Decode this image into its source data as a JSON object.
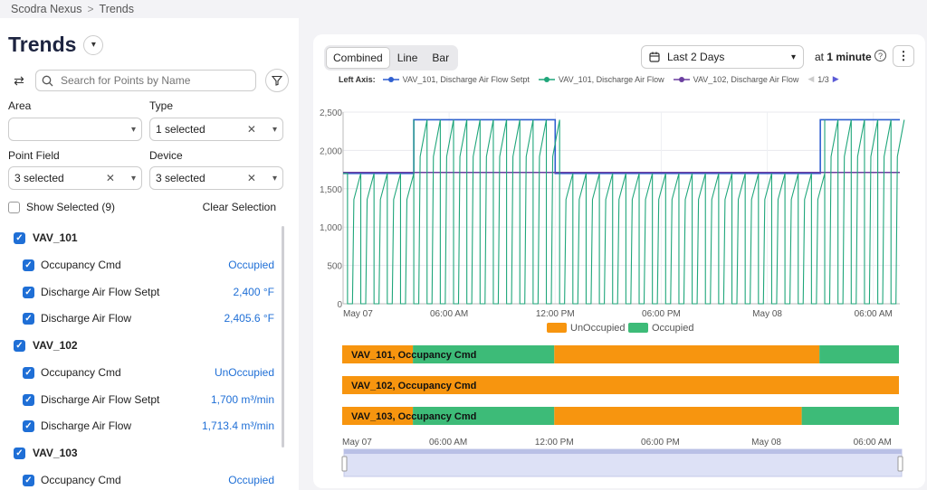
{
  "breadcrumb": {
    "root": "Scodra Nexus",
    "current": "Trends"
  },
  "sidebar": {
    "title": "Trends",
    "search_placeholder": "Search for Points by Name",
    "filters": {
      "area": {
        "label": "Area",
        "value": ""
      },
      "type": {
        "label": "Type",
        "value": "1 selected"
      },
      "point_field": {
        "label": "Point Field",
        "value": "3 selected"
      },
      "device": {
        "label": "Device",
        "value": "3 selected"
      }
    },
    "show_selected": {
      "label": "Show Selected (9)",
      "checked": false
    },
    "clear_selection": "Clear Selection",
    "devices": [
      {
        "name": "VAV_101",
        "points": [
          {
            "name": "Occupancy Cmd",
            "value": "Occupied"
          },
          {
            "name": "Discharge Air Flow Setpt",
            "value": "2,400 °F"
          },
          {
            "name": "Discharge Air Flow",
            "value": "2,405.6 °F"
          }
        ]
      },
      {
        "name": "VAV_102",
        "points": [
          {
            "name": "Occupancy Cmd",
            "value": "UnOccupied"
          },
          {
            "name": "Discharge Air Flow Setpt",
            "value": "1,700 m³/min"
          },
          {
            "name": "Discharge Air Flow",
            "value": "1,713.4 m³/min"
          }
        ]
      },
      {
        "name": "VAV_103",
        "points": [
          {
            "name": "Occupancy Cmd",
            "value": "Occupied"
          }
        ]
      }
    ]
  },
  "toolbar": {
    "view_modes": [
      "Combined",
      "Line",
      "Bar"
    ],
    "active_view": "Combined",
    "time_range": "Last 2 Days",
    "interval_prefix": "at",
    "interval_value": "1 minute",
    "help_icon": "question-circle-icon",
    "menu_icon": "kebab-icon"
  },
  "legend": {
    "axis_label": "Left Axis:",
    "items": [
      {
        "name": "VAV_101, Discharge Air Flow Setpt",
        "color": "#2f5fd0"
      },
      {
        "name": "VAV_101, Discharge Air Flow",
        "color": "#1fa67a"
      },
      {
        "name": "VAV_102, Discharge Air Flow",
        "color": "#6b3fa0"
      }
    ],
    "page": "1/3"
  },
  "chart_data": [
    {
      "type": "line",
      "ylim": [
        0,
        2500
      ],
      "yticks": [
        "0",
        "500",
        "1,000",
        "1,500",
        "2,000",
        "2,500"
      ],
      "xticks": [
        "May 07",
        "06:00 AM",
        "12:00 PM",
        "06:00 PM",
        "May 08",
        "06:00 AM"
      ],
      "grid": true,
      "series": [
        {
          "name": "VAV_101, Discharge Air Flow Setpt",
          "color": "#2f5fd0",
          "x": [
            "May 07 00:00",
            "May 07 04:00",
            "May 07 04:00",
            "May 07 12:00",
            "May 07 12:00",
            "May 08 03:00",
            "May 08 03:00",
            "May 08 07:30"
          ],
          "values": [
            1700,
            1700,
            2400,
            2400,
            1700,
            1700,
            2400,
            2400
          ]
        },
        {
          "name": "VAV_101, Discharge Air Flow",
          "color": "#1fa67a",
          "pattern": "recurring drops from ~1700–2400 down to ~0 roughly every 45 min across the whole range",
          "values_range": [
            0,
            2400
          ]
        },
        {
          "name": "VAV_102, Discharge Air Flow",
          "color": "#6b3fa0",
          "x": [
            "May 07 00:00",
            "May 08 07:30"
          ],
          "values": [
            1713,
            1713
          ]
        }
      ]
    },
    {
      "type": "bar",
      "subtype": "state timeline",
      "xticks": [
        "May 07",
        "06:00 AM",
        "12:00 PM",
        "06:00 PM",
        "May 08",
        "06:00 AM"
      ],
      "legend": [
        {
          "name": "UnOccupied",
          "color": "#f7950f"
        },
        {
          "name": "Occupied",
          "color": "#3dbb78"
        }
      ],
      "rows": [
        {
          "name": "VAV_101, Occupancy Cmd",
          "segments": [
            {
              "state": "UnOccupied",
              "start": "May 07 00:00",
              "end": "May 07 04:00"
            },
            {
              "state": "Occupied",
              "start": "May 07 04:00",
              "end": "May 07 12:00"
            },
            {
              "state": "UnOccupied",
              "start": "May 07 12:00",
              "end": "May 08 03:00"
            },
            {
              "state": "Occupied",
              "start": "May 08 03:00",
              "end": "May 08 07:30"
            }
          ]
        },
        {
          "name": "VAV_102, Occupancy Cmd",
          "segments": [
            {
              "state": "UnOccupied",
              "start": "May 07 00:00",
              "end": "May 08 07:30"
            }
          ]
        },
        {
          "name": "VAV_103, Occupancy Cmd",
          "segments": [
            {
              "state": "UnOccupied",
              "start": "May 07 00:00",
              "end": "May 07 04:00"
            },
            {
              "state": "Occupied",
              "start": "May 07 04:00",
              "end": "May 07 12:00"
            },
            {
              "state": "UnOccupied",
              "start": "May 07 12:00",
              "end": "May 08 02:00"
            },
            {
              "state": "Occupied",
              "start": "May 08 02:00",
              "end": "May 08 07:30"
            }
          ]
        }
      ]
    }
  ]
}
